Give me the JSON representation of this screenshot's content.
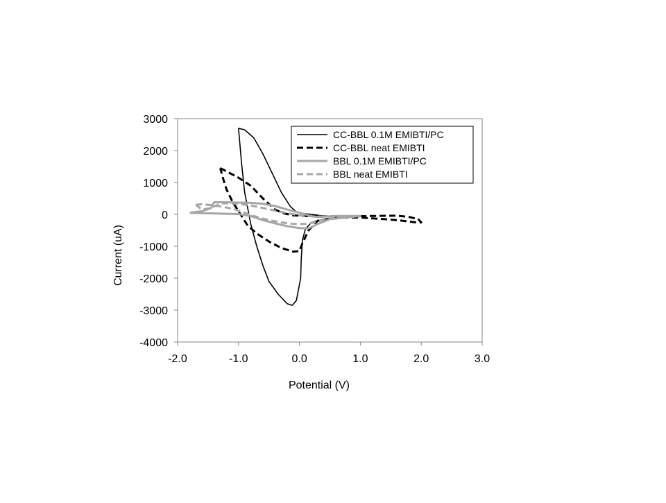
{
  "chart_data": {
    "type": "line",
    "title": "",
    "xlabel": "Potential (V)",
    "ylabel": "Current (uA)",
    "xlim": [
      -2.0,
      3.0
    ],
    "ylim": [
      -4000,
      3000
    ],
    "xticks": [
      -2.0,
      -1.0,
      0.0,
      1.0,
      2.0,
      3.0
    ],
    "xtick_labels": [
      "-2.0",
      "-1.0",
      "0.0",
      "1.0",
      "2.0",
      "3.0"
    ],
    "yticks": [
      3000,
      2000,
      1000,
      0,
      -1000,
      -2000,
      -3000,
      -4000
    ],
    "ytick_labels": [
      "3000",
      "2000",
      "1000",
      "0",
      "-1000",
      "-2000",
      "-3000",
      "-4000"
    ],
    "grid": false,
    "legend_position": "top-right",
    "series": [
      {
        "name": "CC-BBL 0.1M EMIBTI/PC",
        "color": "#000000",
        "dash": "solid",
        "x": [
          -1.0,
          -0.9,
          -0.75,
          -0.6,
          -0.45,
          -0.3,
          -0.15,
          -0.05,
          0.05,
          0.2,
          0.4,
          0.7,
          1.0,
          1.05,
          1.0,
          0.7,
          0.4,
          0.2,
          0.1,
          0.05,
          0.03,
          0.02,
          -0.05,
          -0.12,
          -0.2,
          -0.35,
          -0.5,
          -0.6,
          -0.7,
          -0.8,
          -0.85,
          -0.9,
          -0.95,
          -1.0
        ],
        "y": [
          2700,
          2650,
          2400,
          1900,
          1300,
          700,
          250,
          80,
          30,
          0,
          -50,
          -60,
          -50,
          -40,
          -70,
          -100,
          -150,
          -250,
          -450,
          -800,
          -1400,
          -2000,
          -2700,
          -2850,
          -2800,
          -2500,
          -2100,
          -1600,
          -1000,
          -300,
          200,
          700,
          1600,
          2700
        ]
      },
      {
        "name": "CC-BBL neat EMIBTI",
        "color": "#000000",
        "dash": "dashed",
        "x": [
          -1.3,
          -1.2,
          -1.0,
          -0.8,
          -0.6,
          -0.4,
          -0.25,
          -0.1,
          0.1,
          0.4,
          0.8,
          1.2,
          1.6,
          1.8,
          1.95,
          2.0,
          1.95,
          1.7,
          1.4,
          1.0,
          0.6,
          0.3,
          0.15,
          0.05,
          0.0,
          -0.1,
          -0.3,
          -0.5,
          -0.7,
          -0.85,
          -0.9,
          -1.0,
          -1.1,
          -1.2,
          -1.25,
          -1.3
        ],
        "y": [
          1450,
          1350,
          1150,
          900,
          500,
          150,
          30,
          -30,
          -50,
          -60,
          -60,
          -50,
          -40,
          -80,
          -150,
          -250,
          -260,
          -200,
          -150,
          -100,
          -100,
          -200,
          -500,
          -900,
          -1150,
          -1170,
          -1050,
          -850,
          -600,
          -350,
          -200,
          100,
          400,
          800,
          1100,
          1450
        ]
      },
      {
        "name": "BBL 0.1M EMIBTI/PC",
        "color": "#a6a6a6",
        "dash": "solid",
        "x": [
          -1.8,
          -1.6,
          -1.4,
          -1.2,
          -1.0,
          -0.8,
          -0.6,
          -0.4,
          -0.2,
          0.0,
          0.15,
          0.3,
          0.5,
          1.0,
          0.6,
          0.3,
          0.2,
          0.1,
          0.0,
          -0.2,
          -0.4,
          -0.6,
          -0.8,
          -1.0,
          -1.2,
          -1.3,
          -1.4,
          -1.45,
          -1.6,
          -1.8
        ],
        "y": [
          50,
          40,
          30,
          20,
          10,
          -50,
          -180,
          -280,
          -370,
          -430,
          -440,
          -300,
          -150,
          -50,
          -50,
          -80,
          -60,
          0,
          50,
          150,
          260,
          330,
          360,
          370,
          380,
          380,
          380,
          200,
          100,
          50
        ]
      },
      {
        "name": "BBL neat EMIBTI",
        "color": "#a6a6a6",
        "dash": "dashed",
        "x": [
          -1.7,
          -1.6,
          -1.5,
          -1.3,
          -1.1,
          -0.9,
          -0.7,
          -0.5,
          -0.3,
          -0.1,
          0.1,
          0.25,
          0.4,
          0.7,
          1.0,
          0.7,
          0.4,
          0.2,
          0.0,
          -0.2,
          -0.4,
          -0.6,
          -0.8,
          -1.0,
          -1.2,
          -1.3,
          -1.45,
          -1.6,
          -1.7
        ],
        "y": [
          300,
          320,
          300,
          250,
          180,
          50,
          -80,
          -180,
          -250,
          -300,
          -300,
          -250,
          -150,
          -80,
          -60,
          -60,
          -70,
          -60,
          -30,
          40,
          120,
          200,
          280,
          330,
          350,
          340,
          200,
          150,
          300
        ]
      }
    ]
  }
}
